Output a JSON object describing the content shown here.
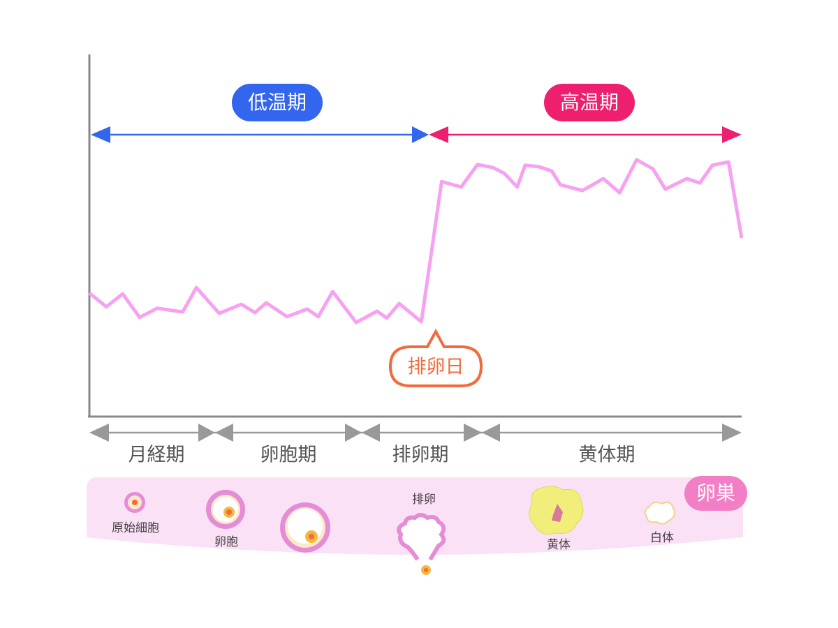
{
  "chart_data": {
    "type": "line",
    "temperature_phases": [
      "低温期",
      "高温期"
    ],
    "ovulation_label": "排卵日",
    "phases": [
      "月経期",
      "卵胞期",
      "排卵期",
      "黄体期"
    ],
    "ovary_label": "卵巣",
    "stages": [
      "原始細胞",
      "卵胞",
      "排卵",
      "黄体",
      "白体"
    ],
    "color": "#f7a1f1",
    "xlim": [
      0,
      100
    ],
    "ylim": [
      0,
      100
    ],
    "x": [
      0,
      2.6,
      5.1,
      7.7,
      10.4,
      14.3,
      16.4,
      19.9,
      23.3,
      25.4,
      27.1,
      30.3,
      33.4,
      35.1,
      37.3,
      40.9,
      44.1,
      45.6,
      47.5,
      50.9,
      54.0,
      57.0,
      59.5,
      61.8,
      63.6,
      65.6,
      66.8,
      68.9,
      70.9,
      72.2,
      75.6,
      78.8,
      81.3,
      83.9,
      86.4,
      88.3,
      91.6,
      93.6,
      95.5,
      98.0,
      100
    ],
    "values": [
      34.1,
      30.3,
      33.9,
      27.4,
      29.9,
      28.9,
      35.6,
      28.5,
      31.0,
      28.7,
      31.4,
      27.6,
      29.7,
      27.6,
      34.5,
      26.0,
      29.1,
      27.2,
      31.2,
      26.2,
      64.9,
      63.4,
      69.6,
      68.8,
      67.2,
      63.4,
      69.4,
      69.0,
      67.8,
      64.0,
      62.4,
      65.7,
      61.8,
      70.9,
      68.4,
      62.8,
      65.7,
      64.5,
      69.4,
      70.3,
      49.3
    ]
  }
}
